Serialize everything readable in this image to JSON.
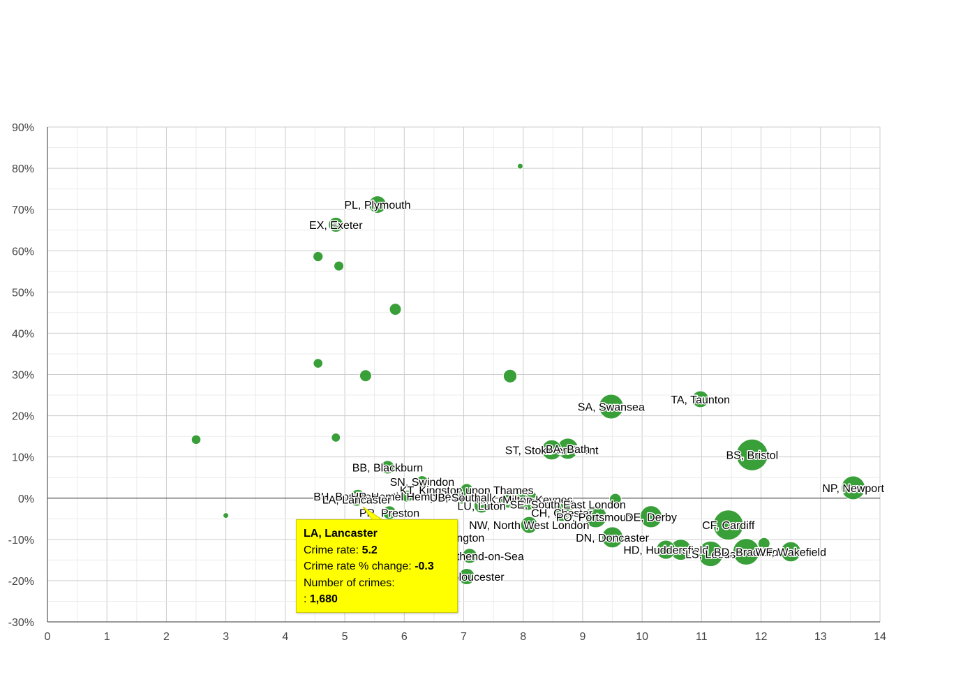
{
  "chart_data": {
    "type": "scatter",
    "title": "",
    "xlabel": "",
    "ylabel": "",
    "xlim": [
      0,
      14
    ],
    "ylim": [
      -30,
      90
    ],
    "x_ticks": [
      "0",
      "1",
      "2",
      "3",
      "4",
      "5",
      "6",
      "7",
      "8",
      "9",
      "10",
      "11",
      "12",
      "13",
      "14"
    ],
    "y_ticks": [
      "-30%",
      "-20%",
      "-10%",
      "0%",
      "10%",
      "20%",
      "30%",
      "40%",
      "50%",
      "60%",
      "70%",
      "80%",
      "90%"
    ],
    "x_tick_values": [
      0,
      1,
      2,
      3,
      4,
      5,
      6,
      7,
      8,
      9,
      10,
      11,
      12,
      13,
      14
    ],
    "y_tick_values": [
      -30,
      -20,
      -10,
      0,
      10,
      20,
      30,
      40,
      50,
      60,
      70,
      80,
      90
    ],
    "bubble_color": "#2e9a2e",
    "bubble_stroke": "#1f7a1f",
    "points": [
      {
        "label": "",
        "x": 7.95,
        "y": 80.5,
        "size": 50
      },
      {
        "label": "PL, Plymouth",
        "x": 5.55,
        "y": 71.2,
        "size": 1500
      },
      {
        "label": "EX, Exeter",
        "x": 4.85,
        "y": 66.3,
        "size": 1100
      },
      {
        "label": "",
        "x": 4.55,
        "y": 58.6,
        "size": 500
      },
      {
        "label": "",
        "x": 4.9,
        "y": 56.3,
        "size": 480
      },
      {
        "label": "",
        "x": 5.85,
        "y": 45.8,
        "size": 700
      },
      {
        "label": "",
        "x": 4.55,
        "y": 32.7,
        "size": 450
      },
      {
        "label": "",
        "x": 5.35,
        "y": 29.7,
        "size": 700
      },
      {
        "label": "",
        "x": 7.78,
        "y": 29.6,
        "size": 900
      },
      {
        "label": "TA, Taunton",
        "x": 10.98,
        "y": 24.0,
        "size": 1400
      },
      {
        "label": "SA, Swansea",
        "x": 9.48,
        "y": 22.2,
        "size": 3000
      },
      {
        "label": "",
        "x": 2.5,
        "y": 14.2,
        "size": 450
      },
      {
        "label": "",
        "x": 4.85,
        "y": 14.7,
        "size": 400
      },
      {
        "label": "ST, Stoke-on-Trent",
        "x": 8.48,
        "y": 11.7,
        "size": 2000
      },
      {
        "label": "BA, Bath",
        "x": 8.75,
        "y": 12.0,
        "size": 2200
      },
      {
        "label": "BS, Bristol",
        "x": 11.85,
        "y": 10.5,
        "size": 5000
      },
      {
        "label": "BB, Blackburn",
        "x": 5.72,
        "y": 7.5,
        "size": 900
      },
      {
        "label": "SN, Swindon",
        "x": 6.3,
        "y": 4.0,
        "size": 700
      },
      {
        "label": "NP, Newport",
        "x": 13.55,
        "y": 2.5,
        "size": 2800
      },
      {
        "label": "BH, Bournemouth",
        "x": 5.22,
        "y": 0.5,
        "size": 900
      },
      {
        "label": "KT, Kingston upon Thames",
        "x": 7.05,
        "y": 2.0,
        "size": 800
      },
      {
        "label": "HP, Hemel Hempstead",
        "x": 6.05,
        "y": 0.5,
        "size": 700
      },
      {
        "label": "CR, Croydon",
        "x": 7.75,
        "y": -0.5,
        "size": 1200
      },
      {
        "label": "MK, Milton Keynes",
        "x": 8.05,
        "y": -0.3,
        "size": 2500
      },
      {
        "label": "SE, South East London",
        "x": 8.75,
        "y": -1.5,
        "size": 1000
      },
      {
        "label": "",
        "x": 9.55,
        "y": -0.3,
        "size": 700
      },
      {
        "label": "LU, Luton",
        "x": 7.3,
        "y": -1.8,
        "size": 1100
      },
      {
        "label": "UB, Southall",
        "x": 6.95,
        "y": 0.2,
        "size": 900
      },
      {
        "label": "CH, Chester",
        "x": 8.65,
        "y": -3.5,
        "size": 1500
      },
      {
        "label": "PO, Portsmouth",
        "x": 9.22,
        "y": -4.5,
        "size": 2400
      },
      {
        "label": "DE, Derby",
        "x": 10.15,
        "y": -4.5,
        "size": 2400
      },
      {
        "label": "CF, Cardiff",
        "x": 11.45,
        "y": -6.5,
        "size": 4500
      },
      {
        "label": "LA, Lancaster",
        "x": 5.2,
        "y": -0.3,
        "size": 650,
        "highlight": true
      },
      {
        "label": "PR, Preston",
        "x": 5.75,
        "y": -3.5,
        "size": 900
      },
      {
        "label": "",
        "x": 3.0,
        "y": -4.2,
        "size": 100
      },
      {
        "label": "NW, North West London",
        "x": 8.1,
        "y": -6.5,
        "size": 1400
      },
      {
        "label": "DN, Doncaster",
        "x": 9.5,
        "y": -9.5,
        "size": 2200
      },
      {
        "label": "HD, Huddersfield",
        "x": 10.4,
        "y": -12.5,
        "size": 1800
      },
      {
        "label": "",
        "x": 10.65,
        "y": -12.5,
        "size": 2200
      },
      {
        "label": "LS, Leeds",
        "x": 11.15,
        "y": -13.5,
        "size": 3200
      },
      {
        "label": "BD, Bradford",
        "x": 11.75,
        "y": -13.0,
        "size": 3500
      },
      {
        "label": "",
        "x": 12.05,
        "y": -11.0,
        "size": 700
      },
      {
        "label": "WF, Wakefield",
        "x": 12.5,
        "y": -13.0,
        "size": 2000
      },
      {
        "label": "DL, Darlington",
        "x": 6.75,
        "y": -9.5,
        "size": 900
      },
      {
        "label": "SS, Southend-on-Sea",
        "x": 7.1,
        "y": -14.0,
        "size": 1100
      },
      {
        "label": "GL, Gloucester",
        "x": 7.05,
        "y": -19.0,
        "size": 1300
      }
    ],
    "legend": "none",
    "grid": true
  },
  "tooltip": {
    "title": "LA, Lancaster",
    "rate_label": "Crime rate:",
    "rate_value": "5.2",
    "change_label": "Crime rate % change:",
    "change_value": "-0.3",
    "count_label": "Number of crimes:",
    "count_prefix": ":",
    "count_value": "1,680"
  }
}
